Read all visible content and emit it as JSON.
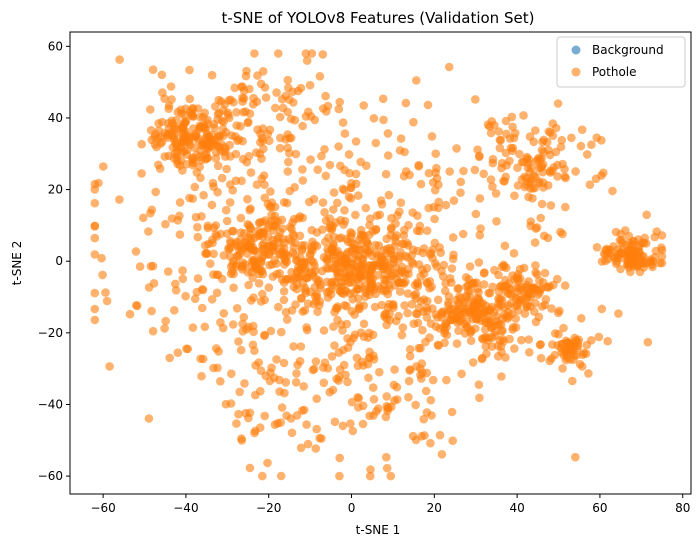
{
  "chart_data": {
    "type": "scatter",
    "title": "t-SNE of YOLOv8 Features (Validation Set)",
    "xlabel": "t-SNE 1",
    "ylabel": "t-SNE 2",
    "xlim": [
      -68,
      82
    ],
    "ylim": [
      -65,
      64
    ],
    "xticks": [
      -60,
      -40,
      -20,
      0,
      20,
      40,
      60,
      80
    ],
    "yticks": [
      -60,
      -40,
      -20,
      0,
      20,
      40,
      60
    ],
    "grid": false,
    "legend_position": "top-right",
    "point_alpha": 0.6,
    "series": [
      {
        "name": "Background",
        "color": "#1f77b4",
        "points": []
      },
      {
        "name": "Pothole",
        "color": "#ff7f0e",
        "clusters": [
          {
            "center": [
              -38,
              35
            ],
            "spread": [
              6,
              5
            ],
            "count": 180
          },
          {
            "center": [
              -22,
              3
            ],
            "spread": [
              7,
              5
            ],
            "count": 170
          },
          {
            "center": [
              2,
              -3
            ],
            "spread": [
              9,
              7
            ],
            "count": 330
          },
          {
            "center": [
              30,
              -14
            ],
            "spread": [
              6,
              5
            ],
            "count": 190
          },
          {
            "center": [
              42,
              -8
            ],
            "spread": [
              4,
              4
            ],
            "count": 70
          },
          {
            "center": [
              44,
              28
            ],
            "spread": [
              7,
              6
            ],
            "count": 110
          },
          {
            "center": [
              68,
              2
            ],
            "spread": [
              4,
              3
            ],
            "count": 110
          },
          {
            "center": [
              53,
              -25
            ],
            "spread": [
              3,
              3
            ],
            "count": 55
          },
          {
            "center": [
              -5,
              5
            ],
            "spread": [
              28,
              22
            ],
            "count": 520
          },
          {
            "center": [
              0,
              -35
            ],
            "spread": [
              18,
              12
            ],
            "count": 160
          },
          {
            "center": [
              -20,
              40
            ],
            "spread": [
              10,
              8
            ],
            "count": 70
          }
        ]
      }
    ]
  }
}
